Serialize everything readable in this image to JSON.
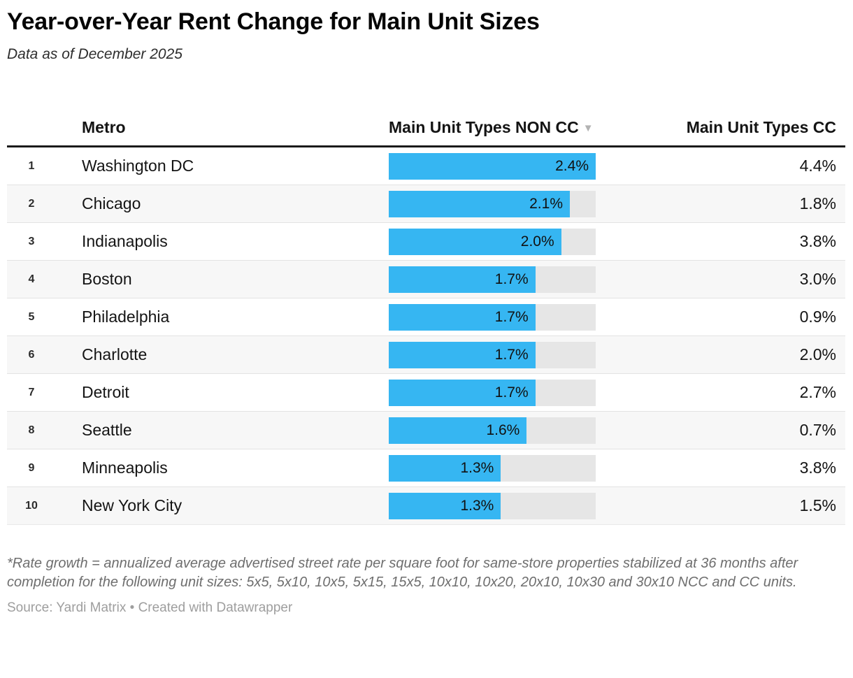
{
  "header": {
    "title": "Year-over-Year Rent Change for Main Unit Sizes",
    "subtitle": "Data as of December 2025"
  },
  "table": {
    "columns": {
      "metro": "Metro",
      "non_cc": "Main Unit Types NON CC",
      "cc": "Main Unit Types CC"
    },
    "sort_icon": "▼",
    "rows": [
      {
        "rank": "1",
        "metro": "Washington DC",
        "non_cc": 2.4,
        "non_cc_label": "2.4%",
        "cc_label": "4.4%"
      },
      {
        "rank": "2",
        "metro": "Chicago",
        "non_cc": 2.1,
        "non_cc_label": "2.1%",
        "cc_label": "1.8%"
      },
      {
        "rank": "3",
        "metro": "Indianapolis",
        "non_cc": 2.0,
        "non_cc_label": "2.0%",
        "cc_label": "3.8%"
      },
      {
        "rank": "4",
        "metro": "Boston",
        "non_cc": 1.7,
        "non_cc_label": "1.7%",
        "cc_label": "3.0%"
      },
      {
        "rank": "5",
        "metro": "Philadelphia",
        "non_cc": 1.7,
        "non_cc_label": "1.7%",
        "cc_label": "0.9%"
      },
      {
        "rank": "6",
        "metro": "Charlotte",
        "non_cc": 1.7,
        "non_cc_label": "1.7%",
        "cc_label": "2.0%"
      },
      {
        "rank": "7",
        "metro": "Detroit",
        "non_cc": 1.7,
        "non_cc_label": "1.7%",
        "cc_label": "2.7%"
      },
      {
        "rank": "8",
        "metro": "Seattle",
        "non_cc": 1.6,
        "non_cc_label": "1.6%",
        "cc_label": "0.7%"
      },
      {
        "rank": "9",
        "metro": "Minneapolis",
        "non_cc": 1.3,
        "non_cc_label": "1.3%",
        "cc_label": "3.8%"
      },
      {
        "rank": "10",
        "metro": "New York City",
        "non_cc": 1.3,
        "non_cc_label": "1.3%",
        "cc_label": "1.5%"
      }
    ]
  },
  "chart_data": {
    "type": "bar",
    "title": "Year-over-Year Rent Change for Main Unit Sizes",
    "subtitle": "Data as of December 2025",
    "categories": [
      "Washington DC",
      "Chicago",
      "Indianapolis",
      "Boston",
      "Philadelphia",
      "Charlotte",
      "Detroit",
      "Seattle",
      "Minneapolis",
      "New York City"
    ],
    "series": [
      {
        "name": "Main Unit Types NON CC",
        "values": [
          2.4,
          2.1,
          2.0,
          1.7,
          1.7,
          1.7,
          1.7,
          1.6,
          1.3,
          1.3
        ]
      },
      {
        "name": "Main Unit Types CC",
        "values": [
          4.4,
          1.8,
          3.8,
          3.0,
          0.9,
          2.0,
          2.7,
          0.7,
          3.8,
          1.5
        ]
      }
    ],
    "value_unit": "%",
    "bar_axis_max": 2.4,
    "sorted_by": "Main Unit Types NON CC descending",
    "legend_position": "none",
    "grid": false
  },
  "footer": {
    "footnote": "*Rate growth = annualized average advertised street rate per square foot for same-store properties stabilized at 36 months after completion for the following unit sizes: 5x5, 5x10, 10x5, 5x15, 15x5, 10x10, 10x20, 20x10, 10x30 and 30x10 NCC and CC units.",
    "source": "Source: Yardi Matrix • Created with Datawrapper"
  },
  "colors": {
    "bar_fill": "#36b6f2",
    "bar_track": "#e6e6e6",
    "row_alt_bg": "#f7f7f7",
    "header_rule": "#1a1a1a"
  }
}
